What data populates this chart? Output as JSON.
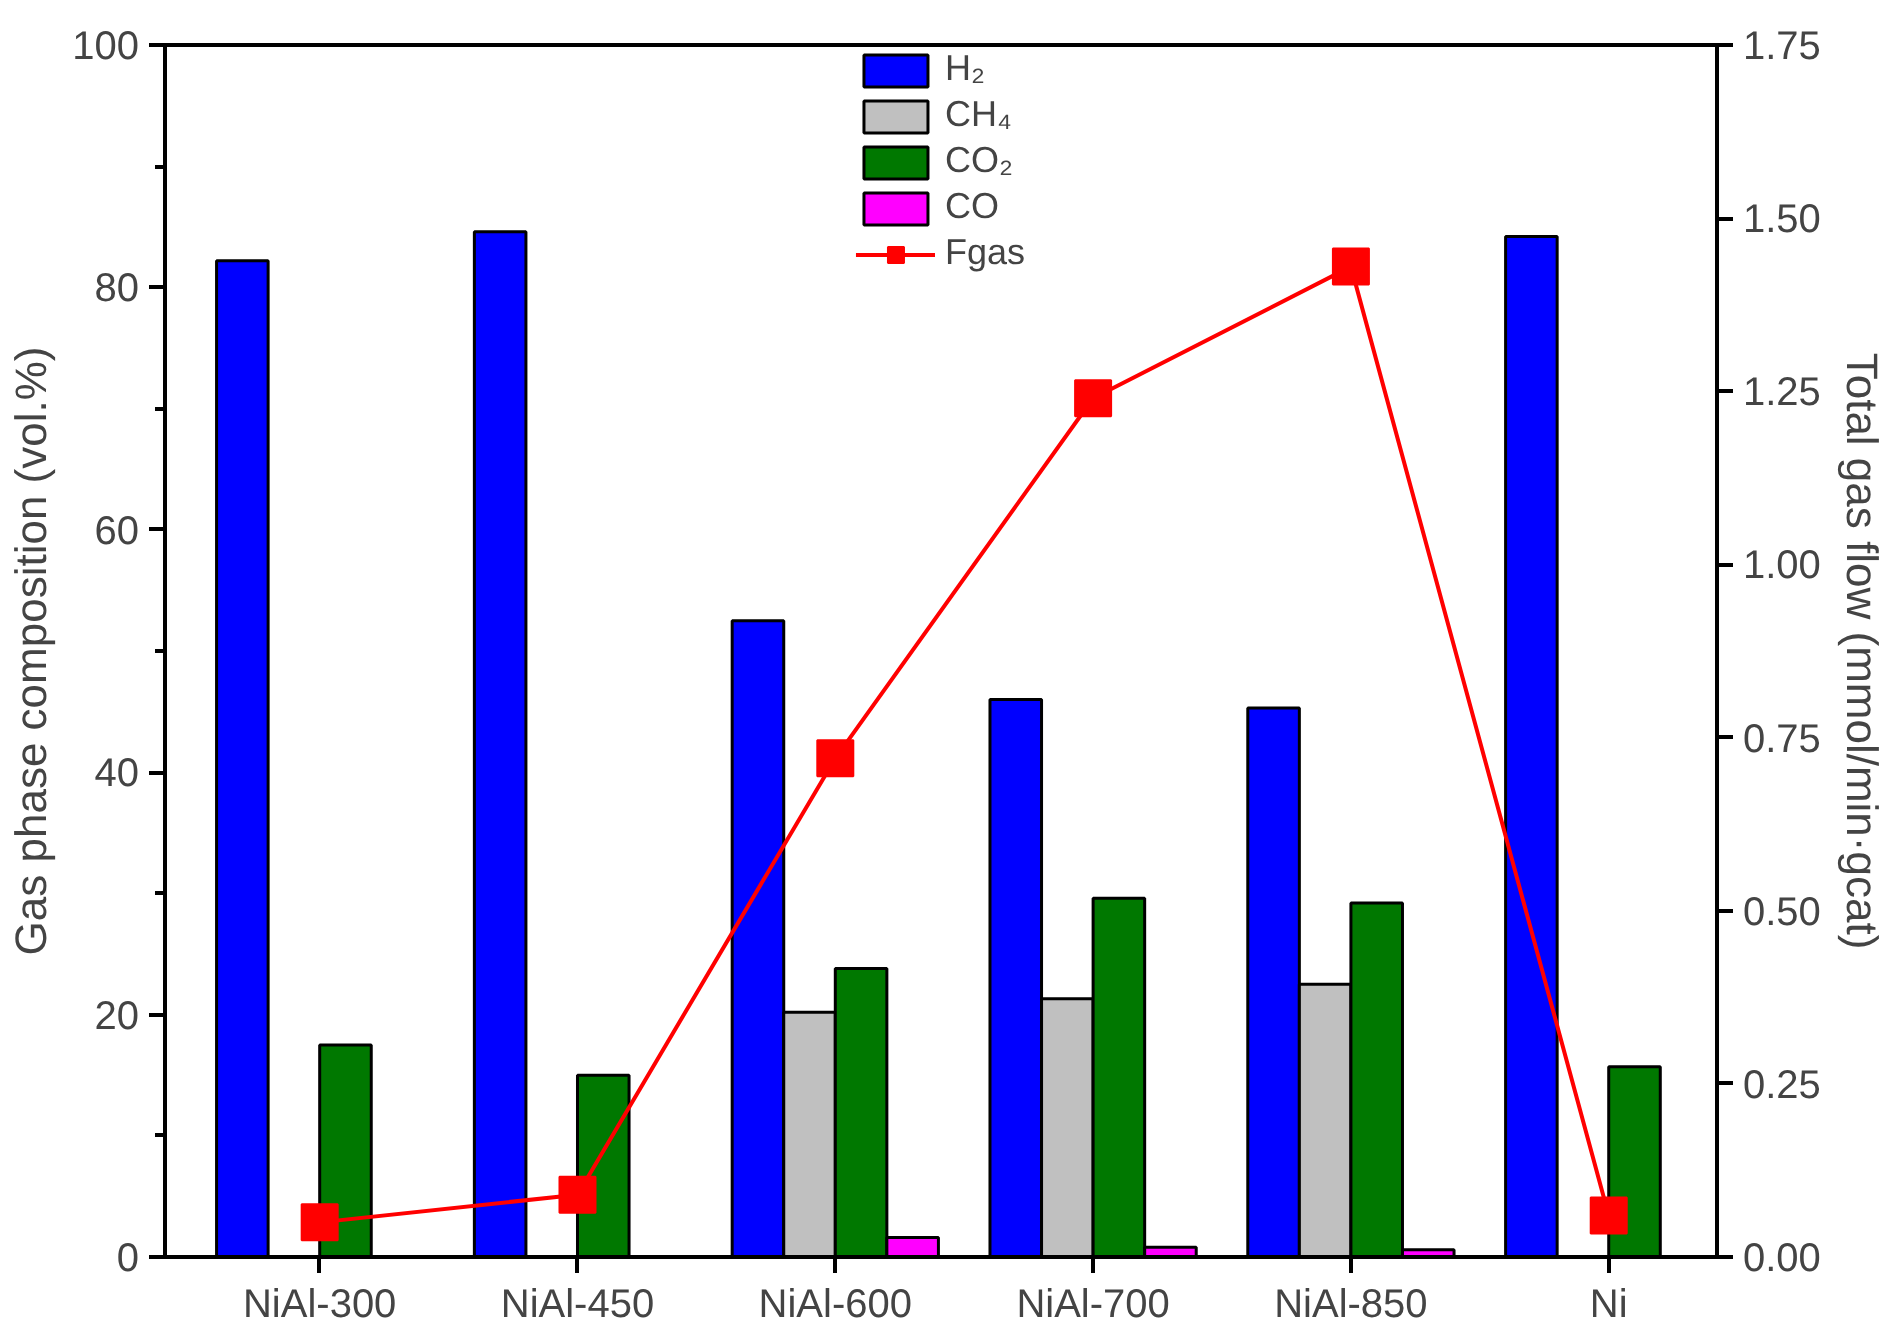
{
  "chart_data": {
    "type": "bar",
    "categories": [
      "NiAl-300",
      "NiAl-450",
      "NiAl-600",
      "NiAl-700",
      "NiAl-850",
      "Ni"
    ],
    "ylabel": "Gas phase composition (vol.%)",
    "y2label": "Total gas flow (mmol/min·gcat)",
    "ylim": [
      0,
      100
    ],
    "yticks": [
      0,
      20,
      40,
      60,
      80,
      100
    ],
    "y2lim": [
      0,
      1.75
    ],
    "y2ticks": [
      {
        "value": 0,
        "label": "0.00"
      },
      {
        "value": 0.25,
        "label": "0.25"
      },
      {
        "value": 0.5,
        "label": "0.50"
      },
      {
        "value": 0.75,
        "label": "0.75"
      },
      {
        "value": 1.0,
        "label": "1.00"
      },
      {
        "value": 1.25,
        "label": "1.25"
      },
      {
        "value": 1.5,
        "label": "1.50"
      },
      {
        "value": 1.75,
        "label": "1.75"
      }
    ],
    "series": [
      {
        "name": "H₂",
        "color": "#0000ff",
        "values": [
          82.2,
          84.6,
          52.5,
          46.0,
          45.3,
          84.2
        ]
      },
      {
        "name": "CH₄",
        "color": "#c0c0c0",
        "values": [
          null,
          null,
          20.2,
          21.3,
          22.5,
          null
        ]
      },
      {
        "name": "CO₂",
        "color": "#007800",
        "values": [
          17.5,
          15.0,
          23.8,
          29.6,
          29.2,
          15.7
        ]
      },
      {
        "name": "CO",
        "color": "#ff00ff",
        "values": [
          null,
          null,
          1.6,
          0.8,
          0.6,
          null
        ]
      },
      {
        "name": "Fgas",
        "color": "#ff0000",
        "type": "line",
        "axis": "y2",
        "marker": "square",
        "values": [
          0.05,
          0.09,
          0.72,
          1.24,
          1.43,
          0.06
        ]
      }
    ],
    "legend": "top",
    "grid": false
  }
}
